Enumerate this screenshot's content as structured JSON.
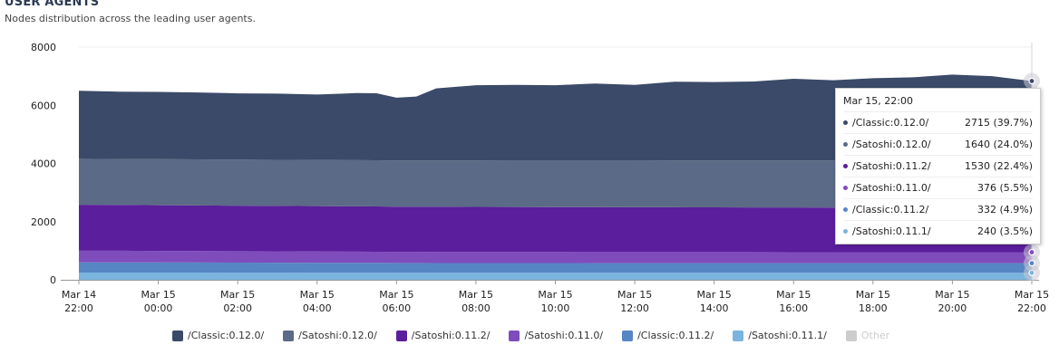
{
  "header": {
    "title": "USER AGENTS",
    "subtitle": "Nodes distribution across the leading user agents."
  },
  "colors": {
    "classic_0_12_0": "#3b4a68",
    "satoshi_0_12_0": "#5b6a86",
    "satoshi_0_11_2": "#5b1e9c",
    "satoshi_0_11_0": "#7f4cbc",
    "classic_0_11_2": "#5686c4",
    "satoshi_0_11_1": "#7bb4de",
    "other": "#cccccc"
  },
  "chart_data": {
    "type": "area",
    "stacked": true,
    "title": "USER AGENTS",
    "subtitle": "Nodes distribution across the leading user agents.",
    "ylim": [
      0,
      8000
    ],
    "yticks": [
      0,
      2000,
      4000,
      6000,
      8000
    ],
    "xlabels": [
      [
        "Mar 14",
        "22:00"
      ],
      [
        "Mar 15",
        "00:00"
      ],
      [
        "Mar 15",
        "02:00"
      ],
      [
        "Mar 15",
        "04:00"
      ],
      [
        "Mar 15",
        "06:00"
      ],
      [
        "Mar 15",
        "08:00"
      ],
      [
        "Mar 15",
        "10:00"
      ],
      [
        "Mar 15",
        "12:00"
      ],
      [
        "Mar 15",
        "14:00"
      ],
      [
        "Mar 15",
        "16:00"
      ],
      [
        "Mar 15",
        "18:00"
      ],
      [
        "Mar 15",
        "20:00"
      ],
      [
        "Mar 15",
        "22:00"
      ]
    ],
    "x": [
      "Mar 14 22:00",
      "Mar 14 23:00",
      "Mar 15 00:00",
      "Mar 15 01:00",
      "Mar 15 02:00",
      "Mar 15 03:00",
      "Mar 15 04:00",
      "Mar 15 05:00",
      "Mar 15 05:30",
      "Mar 15 06:00",
      "Mar 15 06:30",
      "Mar 15 07:00",
      "Mar 15 08:00",
      "Mar 15 09:00",
      "Mar 15 10:00",
      "Mar 15 11:00",
      "Mar 15 12:00",
      "Mar 15 13:00",
      "Mar 15 14:00",
      "Mar 15 15:00",
      "Mar 15 16:00",
      "Mar 15 17:00",
      "Mar 15 18:00",
      "Mar 15 19:00",
      "Mar 15 20:00",
      "Mar 15 21:00",
      "Mar 15 22:00"
    ],
    "series": [
      {
        "name": "/Satoshi:0.11.1/",
        "color_key": "satoshi_0_11_1",
        "values": [
          250,
          250,
          250,
          248,
          246,
          245,
          244,
          243,
          242,
          240,
          240,
          240,
          240,
          240,
          240,
          240,
          240,
          240,
          240,
          240,
          240,
          240,
          240,
          240,
          240,
          240,
          240
        ]
      },
      {
        "name": "/Classic:0.11.2/",
        "color_key": "classic_0_11_2",
        "values": [
          350,
          350,
          348,
          346,
          345,
          344,
          342,
          340,
          339,
          338,
          338,
          337,
          336,
          335,
          335,
          334,
          334,
          334,
          333,
          333,
          333,
          333,
          332,
          332,
          332,
          332,
          332
        ]
      },
      {
        "name": "/Satoshi:0.11.0/",
        "color_key": "satoshi_0_11_0",
        "values": [
          400,
          398,
          396,
          394,
          392,
          390,
          388,
          386,
          385,
          384,
          384,
          383,
          382,
          381,
          380,
          380,
          379,
          379,
          378,
          378,
          377,
          377,
          377,
          376,
          376,
          376,
          376
        ]
      },
      {
        "name": "/Satoshi:0.11.2/",
        "color_key": "satoshi_0_11_2",
        "values": [
          1580,
          1575,
          1570,
          1568,
          1565,
          1562,
          1560,
          1557,
          1555,
          1553,
          1552,
          1551,
          1549,
          1547,
          1545,
          1543,
          1541,
          1540,
          1538,
          1537,
          1536,
          1535,
          1534,
          1533,
          1532,
          1531,
          1530
        ]
      },
      {
        "name": "/Satoshi:0.12.0/",
        "color_key": "satoshi_0_12_0",
        "values": [
          1580,
          1581,
          1582,
          1583,
          1584,
          1585,
          1586,
          1587,
          1588,
          1589,
          1590,
          1591,
          1593,
          1595,
          1598,
          1601,
          1604,
          1607,
          1610,
          1613,
          1616,
          1619,
          1622,
          1626,
          1630,
          1635,
          1640
        ]
      },
      {
        "name": "/Classic:0.12.0/",
        "color_key": "classic_0_12_0",
        "values": [
          2340,
          2316,
          2314,
          2301,
          2278,
          2274,
          2250,
          2307,
          2305,
          2156,
          2196,
          2479,
          2590,
          2604,
          2591,
          2647,
          2602,
          2710,
          2701,
          2717,
          2808,
          2756,
          2825,
          2853,
          2943,
          2886,
          2715
        ]
      }
    ],
    "legend_position": "bottom",
    "grid": "horizontal",
    "tooltip_index": 26
  },
  "tooltip": {
    "header": "Mar 15, 22:00",
    "rows": [
      {
        "name": "/Classic:0.12.0/",
        "value": "2715 (39.7%)",
        "color_key": "classic_0_12_0"
      },
      {
        "name": "/Satoshi:0.12.0/",
        "value": "1640 (24.0%)",
        "color_key": "satoshi_0_12_0"
      },
      {
        "name": "/Satoshi:0.11.2/",
        "value": "1530 (22.4%)",
        "color_key": "satoshi_0_11_2"
      },
      {
        "name": "/Satoshi:0.11.0/",
        "value": "376 (5.5%)",
        "color_key": "satoshi_0_11_0"
      },
      {
        "name": "/Classic:0.11.2/",
        "value": "332 (4.9%)",
        "color_key": "classic_0_11_2"
      },
      {
        "name": "/Satoshi:0.11.1/",
        "value": "240 (3.5%)",
        "color_key": "satoshi_0_11_1"
      }
    ]
  },
  "legend": [
    {
      "label": "/Classic:0.12.0/",
      "color_key": "classic_0_12_0",
      "hidden": false
    },
    {
      "label": "/Satoshi:0.12.0/",
      "color_key": "satoshi_0_12_0",
      "hidden": false
    },
    {
      "label": "/Satoshi:0.11.2/",
      "color_key": "satoshi_0_11_2",
      "hidden": false
    },
    {
      "label": "/Satoshi:0.11.0/",
      "color_key": "satoshi_0_11_0",
      "hidden": false
    },
    {
      "label": "/Classic:0.11.2/",
      "color_key": "classic_0_11_2",
      "hidden": false
    },
    {
      "label": "/Satoshi:0.11.1/",
      "color_key": "satoshi_0_11_1",
      "hidden": false
    },
    {
      "label": "Other",
      "color_key": "other",
      "hidden": true
    }
  ]
}
